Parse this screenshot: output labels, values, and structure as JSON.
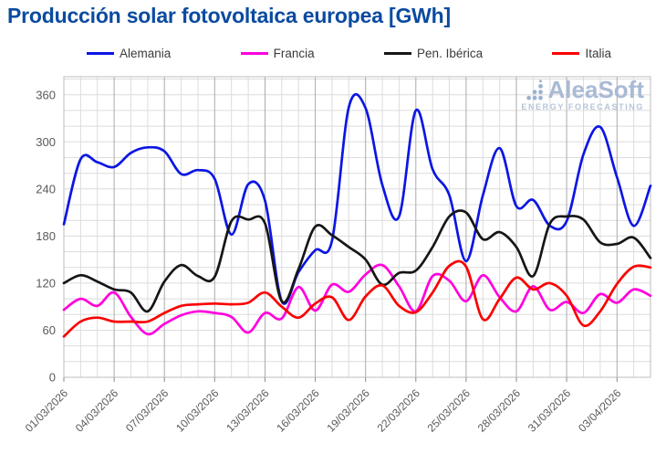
{
  "title": "Producción solar fotovoltaica europea [GWh]",
  "colors": {
    "title": "#0b4ba0",
    "axis_text": "#595959",
    "watermark": "#a9bad4"
  },
  "watermark": {
    "name": "AleaSoft",
    "subtitle": "ENERGY FORECASTING"
  },
  "chart_data": {
    "type": "line",
    "title": "Producción solar fotovoltaica europea [GWh]",
    "xlabel": "",
    "ylabel": "",
    "ylim": [
      0,
      383
    ],
    "yticks": [
      0,
      60,
      120,
      180,
      240,
      300,
      360
    ],
    "grid": true,
    "legend_position": "top",
    "x_tick_labels": [
      "01/03/2026",
      "04/03/2026",
      "07/03/2026",
      "10/03/2026",
      "13/03/2026",
      "16/03/2026",
      "19/03/2026",
      "22/03/2026",
      "25/03/2026",
      "28/03/2026",
      "31/03/2026",
      "03/04/2026"
    ],
    "dates": [
      "01/03/2026",
      "02/03/2026",
      "03/03/2026",
      "04/03/2026",
      "05/03/2026",
      "06/03/2026",
      "07/03/2026",
      "08/03/2026",
      "09/03/2026",
      "10/03/2026",
      "11/03/2026",
      "12/03/2026",
      "13/03/2026",
      "14/03/2026",
      "15/03/2026",
      "16/03/2026",
      "17/03/2026",
      "18/03/2026",
      "19/03/2026",
      "20/03/2026",
      "21/03/2026",
      "22/03/2026",
      "23/03/2026",
      "24/03/2026",
      "25/03/2026",
      "26/03/2026",
      "27/03/2026",
      "28/03/2026",
      "29/03/2026",
      "30/03/2026",
      "31/03/2026",
      "01/04/2026",
      "02/04/2026",
      "03/04/2026",
      "04/04/2026",
      "05/04/2026"
    ],
    "series": [
      {
        "name": "Alemania",
        "color": "#0b16e3",
        "values": [
          195,
          278,
          274,
          268,
          286,
          293,
          288,
          259,
          264,
          253,
          182,
          246,
          225,
          97,
          134,
          162,
          174,
          344,
          343,
          245,
          205,
          340,
          265,
          232,
          148,
          232,
          292,
          218,
          226,
          193,
          199,
          284,
          319,
          255,
          193,
          244
        ]
      },
      {
        "name": "Francia",
        "color": "#ff00dd",
        "values": [
          86,
          100,
          91,
          108,
          77,
          55,
          68,
          79,
          84,
          82,
          77,
          57,
          82,
          75,
          115,
          85,
          118,
          109,
          131,
          143,
          116,
          84,
          129,
          123,
          97,
          130,
          102,
          84,
          116,
          86,
          96,
          82,
          106,
          95,
          112,
          104
        ]
      },
      {
        "name": "Pen. Ibérica",
        "color": "#161616",
        "values": [
          120,
          130,
          122,
          112,
          108,
          84,
          122,
          143,
          129,
          128,
          199,
          201,
          196,
          97,
          138,
          192,
          181,
          166,
          150,
          118,
          133,
          136,
          166,
          205,
          210,
          176,
          185,
          166,
          129,
          196,
          205,
          201,
          172,
          170,
          178,
          152
        ]
      },
      {
        "name": "Italia",
        "color": "#fb0000",
        "values": [
          52,
          71,
          76,
          71,
          71,
          71,
          82,
          91,
          93,
          94,
          93,
          95,
          108,
          90,
          76,
          94,
          102,
          73,
          103,
          117,
          91,
          83,
          108,
          142,
          141,
          74,
          100,
          127,
          112,
          120,
          104,
          66,
          84,
          119,
          141,
          140
        ]
      }
    ]
  }
}
